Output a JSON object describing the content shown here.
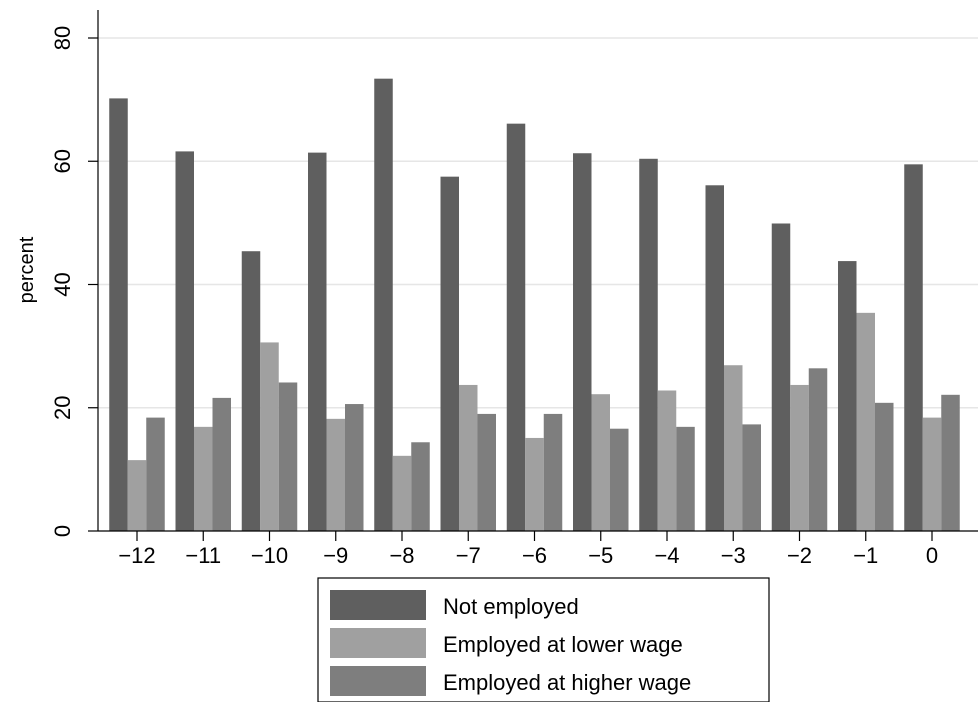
{
  "chart_data": {
    "type": "bar",
    "categories": [
      "−12",
      "−11",
      "−10",
      "−9",
      "−8",
      "−7",
      "−6",
      "−5",
      "−4",
      "−3",
      "−2",
      "−1",
      "0"
    ],
    "series": [
      {
        "name": "Not employed",
        "color": "#5f5f5f",
        "values": [
          70.2,
          61.6,
          45.4,
          61.4,
          73.4,
          57.5,
          66.1,
          61.3,
          60.4,
          56.1,
          49.9,
          43.8,
          59.5
        ]
      },
      {
        "name": "Employed at lower wage",
        "color": "#a0a0a0",
        "values": [
          11.5,
          16.9,
          30.6,
          18.2,
          12.2,
          23.7,
          15.1,
          22.2,
          22.8,
          26.9,
          23.7,
          35.4,
          18.4
        ]
      },
      {
        "name": "Employed at higher wage",
        "color": "#7e7e7e",
        "values": [
          18.4,
          21.6,
          24.1,
          20.6,
          14.4,
          19.0,
          19.0,
          16.6,
          16.9,
          17.3,
          26.4,
          20.8,
          22.1
        ]
      }
    ],
    "ylabel": "percent",
    "xlabel": "",
    "ylim": [
      0,
      80
    ],
    "yticks": [
      0,
      20,
      40,
      60,
      80
    ],
    "grid": true,
    "legend": "bottom-center"
  }
}
